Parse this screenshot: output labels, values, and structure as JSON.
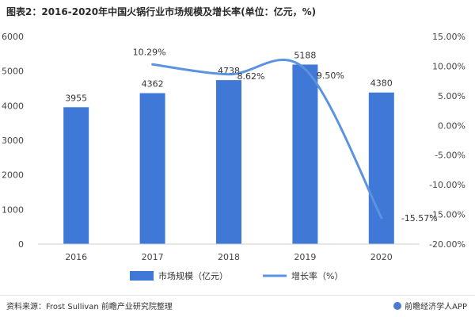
{
  "title": "图表2：2016-2020年中国火锅行业市场规模及增长率(单位：亿元，%)",
  "source": "资料来源：Frost Sullivan 前瞻产业研究院整理",
  "brand": "前瞻经济学人APP",
  "colors": {
    "bar": "#3f78d6",
    "line": "#5b93e0",
    "grid": "#e6e6e6",
    "text": "#444444"
  },
  "chart_data": {
    "type": "bar",
    "categories": [
      "2016",
      "2017",
      "2018",
      "2019",
      "2020"
    ],
    "series": [
      {
        "name": "市场规模（亿元）",
        "type": "bar",
        "axis": "left",
        "values": [
          3955,
          4362,
          4738,
          5188,
          4380
        ],
        "labels": [
          "3955",
          "4362",
          "4738",
          "5188",
          "4380"
        ]
      },
      {
        "name": "增长率（%）",
        "type": "line",
        "axis": "right",
        "values": [
          null,
          10.29,
          8.62,
          9.5,
          -15.57
        ],
        "labels": [
          "",
          "10.29%",
          "8.62%",
          "9.50%",
          "-15.57%"
        ]
      }
    ],
    "ylim_left": [
      0,
      6000
    ],
    "yticks_left": [
      "0",
      "1000",
      "2000",
      "3000",
      "4000",
      "5000",
      "6000"
    ],
    "ylim_right": [
      -20,
      15
    ],
    "yticks_right": [
      "-20.00%",
      "-15.00%",
      "-10.00%",
      "-5.00%",
      "0.00%",
      "5.00%",
      "10.00%",
      "15.00%"
    ],
    "legend": [
      "市场规模（亿元）",
      "增长率（%）"
    ],
    "grid": false,
    "legend_position": "bottom"
  }
}
